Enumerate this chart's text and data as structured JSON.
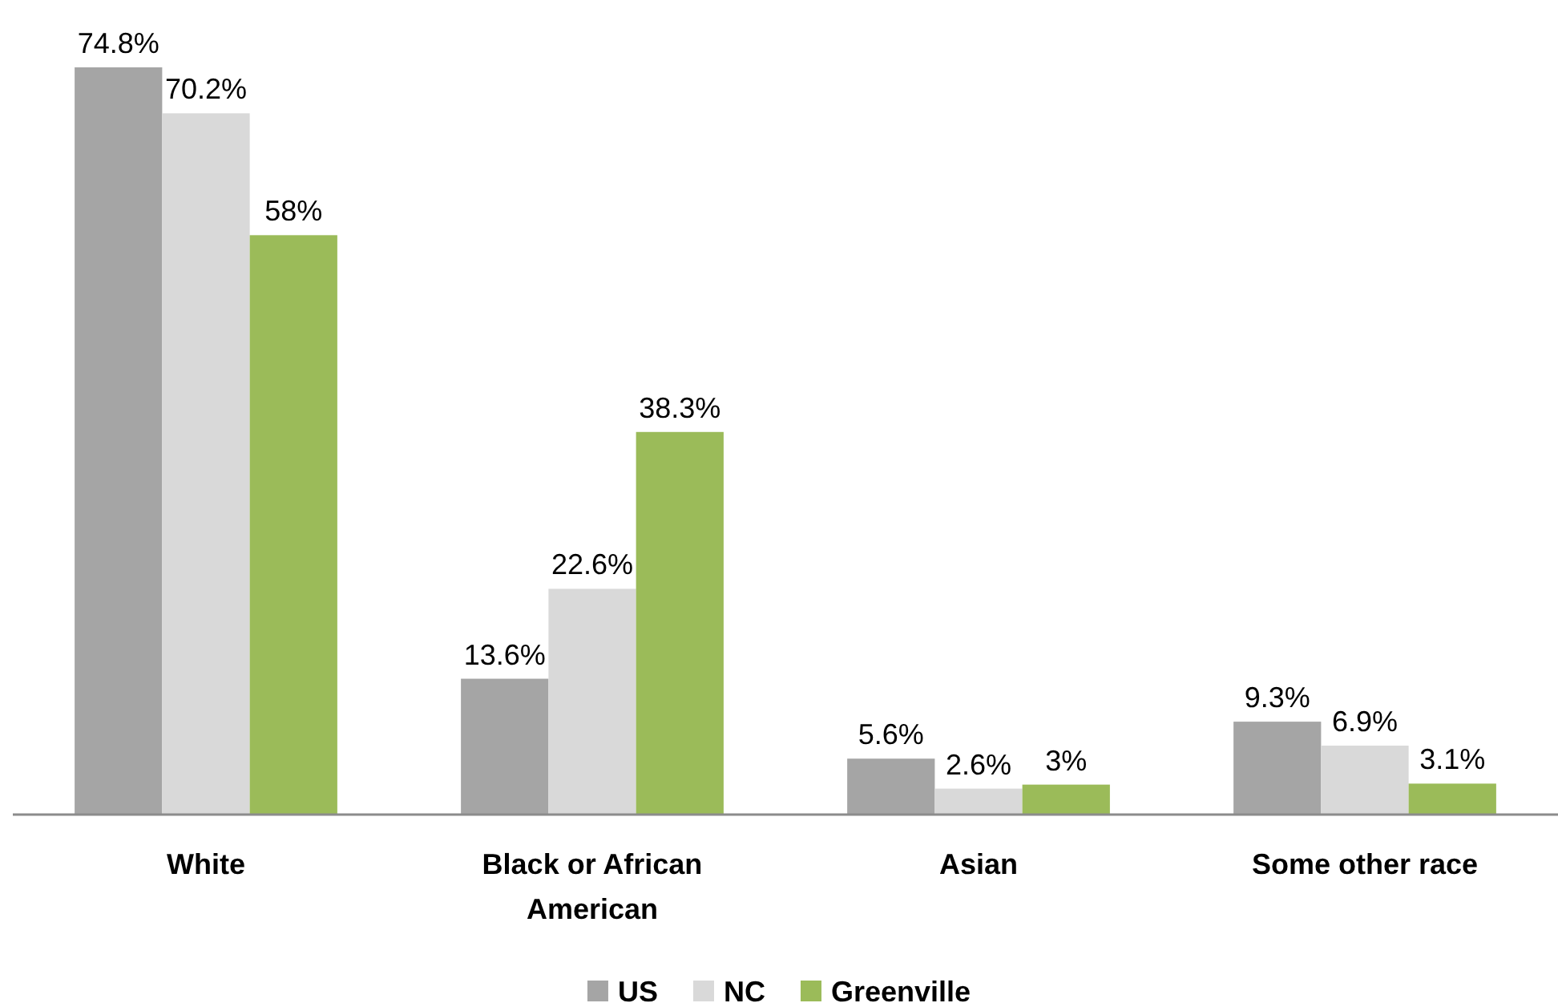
{
  "chart_data": {
    "type": "bar",
    "categories": [
      "White",
      "Black or African American",
      "Asian",
      "Some other race"
    ],
    "series": [
      {
        "name": "US",
        "color": "#a5a5a5",
        "values": [
          74.8,
          13.6,
          5.6,
          9.3
        ],
        "value_labels": [
          "74.8%",
          "13.6%",
          "5.6%",
          "9.3%"
        ]
      },
      {
        "name": "NC",
        "color": "#d9d9d9",
        "values": [
          70.2,
          22.6,
          2.6,
          6.9
        ],
        "value_labels": [
          "70.2%",
          "22.6%",
          "2.6%",
          "6.9%"
        ]
      },
      {
        "name": "Greenville",
        "color": "#9bbb59",
        "values": [
          58,
          38.3,
          3,
          3.1
        ],
        "value_labels": [
          "58%",
          "38.3%",
          "3%",
          "3.1%"
        ]
      }
    ],
    "legend": "bottom"
  }
}
